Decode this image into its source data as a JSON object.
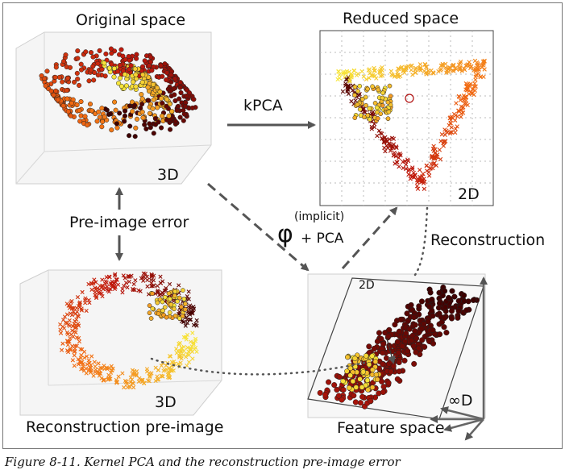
{
  "panels": {
    "original": {
      "title": "Original space",
      "dim": "3D"
    },
    "reduced": {
      "title": "Reduced space",
      "dim": "2D"
    },
    "reconstruction": {
      "title": "Reconstruction pre-image",
      "dim": "3D"
    },
    "feature": {
      "title": "Feature space",
      "plane_label": "2D",
      "dim": "∞D"
    }
  },
  "arrows": {
    "kpca": "kPCA",
    "phi_symbol": "φ",
    "phi_note": "(implicit)",
    "phi_pca": "+ PCA",
    "reconstruction": "Reconstruction",
    "pre_image_error": "Pre-image error"
  },
  "caption": "Figure 8-11. Kernel PCA and the reconstruction pre-image error",
  "colors": {
    "dark": "#3a0000",
    "red": "#c0180c",
    "orange": "#f26a12",
    "yellow": "#f7e63a",
    "grid": "#dcdcdc",
    "arrow": "#5a5a5a"
  }
}
